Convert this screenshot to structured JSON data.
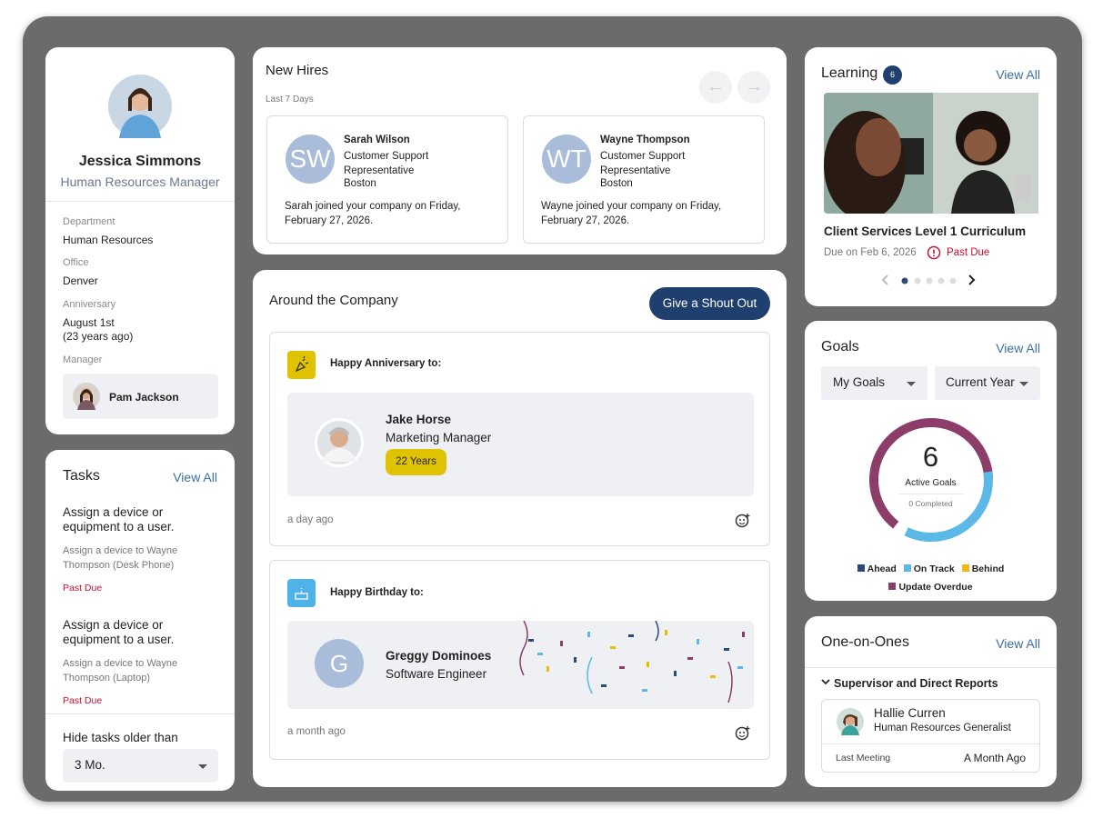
{
  "profile": {
    "name": "Jessica Simmons",
    "title": "Human Resources Manager",
    "fields": [
      {
        "label": "Department",
        "value": "Human Resources"
      },
      {
        "label": "Office",
        "value": "Denver"
      },
      {
        "label": "Anniversary",
        "value": "August 1st",
        "note": "(23 years ago)"
      }
    ],
    "manager_label": "Manager",
    "manager": "Pam Jackson"
  },
  "tasks": {
    "title": "Tasks",
    "view_all": "View All",
    "items": [
      {
        "title": "Assign a device or equipment to a user.",
        "detail": "Assign a device to Wayne Thompson (Desk Phone)",
        "status": "Past Due"
      },
      {
        "title": "Assign a device or equipment to a user.",
        "detail": "Assign a device to Wayne Thompson (Laptop)",
        "status": "Past Due"
      }
    ],
    "filter_label": "Hide tasks older than",
    "filter_value": "3 Mo."
  },
  "new_hires": {
    "title": "New Hires",
    "subtitle": "Last 7 Days",
    "hires": [
      {
        "initials": "SW",
        "name": "Sarah Wilson",
        "role": "Customer Support Representative",
        "location": "Boston",
        "note": "Sarah joined your company on Friday, February 27, 2026."
      },
      {
        "initials": "WT",
        "name": "Wayne Thompson",
        "role": "Customer Support Representative",
        "location": "Boston",
        "note": "Wayne joined your company on Friday, February 27, 2026."
      }
    ]
  },
  "around": {
    "title": "Around the Company",
    "button": "Give a Shout Out",
    "posts": [
      {
        "heading": "Happy Anniversary to:",
        "name": "Jake Horse",
        "role": "Marketing Manager",
        "badge": "22 Years",
        "time": "a day ago"
      },
      {
        "heading": "Happy Birthday to:",
        "initials": "G",
        "name": "Greggy Dominoes",
        "role": "Software Engineer",
        "time": "a month ago"
      }
    ]
  },
  "learning": {
    "title": "Learning",
    "count": 6,
    "view_all": "View All",
    "course": "Client Services Level 1 Curriculum",
    "due": "Due on Feb 6, 2026",
    "status": "Past Due"
  },
  "goals": {
    "title": "Goals",
    "view_all": "View All",
    "filters": [
      "My Goals",
      "Current Year"
    ],
    "active_count": 6,
    "active_label": "Active Goals",
    "completed": "0 Completed",
    "legend": [
      {
        "name": "Ahead",
        "color": "#2b4a7c"
      },
      {
        "name": "On Track",
        "color": "#5cb8e6"
      },
      {
        "name": "Behind",
        "color": "#f2b51c"
      },
      {
        "name": "Update Overdue",
        "color": "#8c3d6a"
      }
    ]
  },
  "one_on_ones": {
    "title": "One-on-Ones",
    "view_all": "View All",
    "group": "Supervisor and Direct Reports",
    "person": {
      "name": "Hallie Curren",
      "role": "Human Resources Generalist",
      "last_meeting_label": "Last Meeting",
      "last_meeting": "A Month Ago"
    }
  }
}
